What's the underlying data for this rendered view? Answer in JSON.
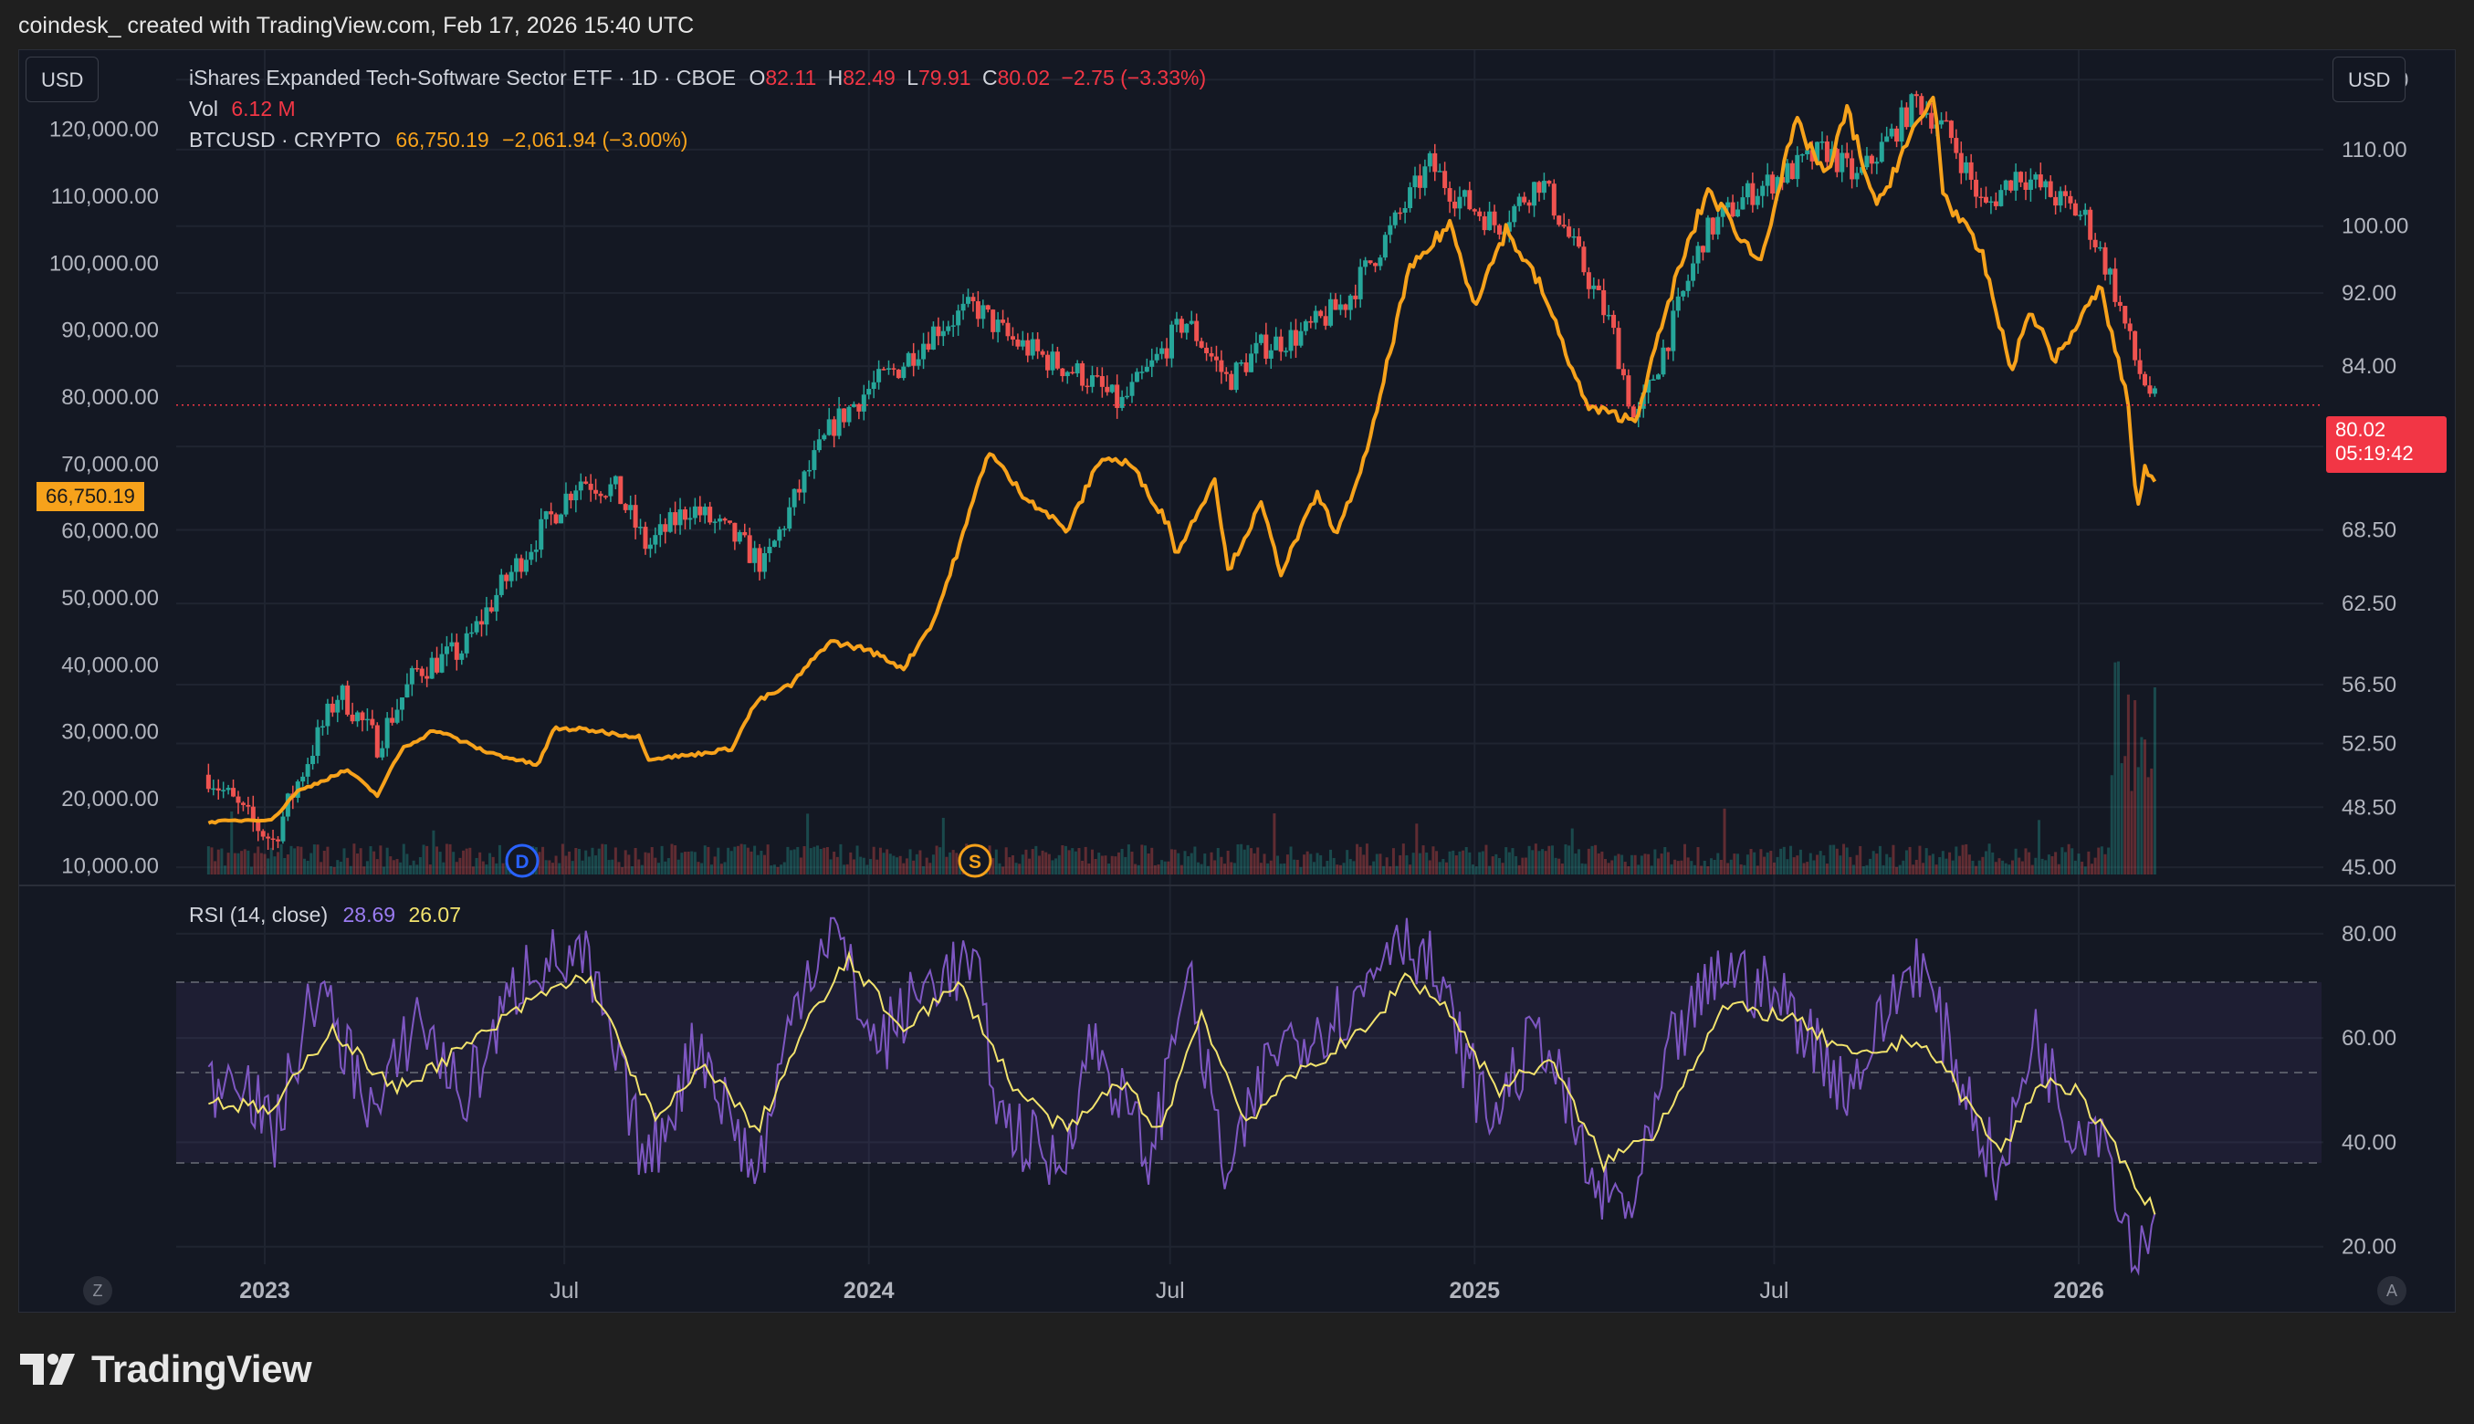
{
  "attribution": "coindesk_ created with TradingView.com, Feb 17, 2026 15:40 UTC",
  "brand": "TradingView",
  "currency_left": "USD",
  "currency_right": "USD",
  "legend": {
    "etf_name": "iShares Expanded Tech-Software Sector ETF · 1D · CBOE",
    "o_label": "O",
    "o_value": "82.11",
    "h_label": "H",
    "h_value": "82.49",
    "l_label": "L",
    "l_value": "79.91",
    "c_label": "C",
    "c_value": "80.02",
    "change": "−2.75 (−3.33%)",
    "vol_label": "Vol",
    "vol_value": "6.12 M",
    "btc_name": "BTCUSD · CRYPTO",
    "btc_value": "66,750.19",
    "btc_change": "−2,061.94 (−3.00%)",
    "rsi_label": "RSI (14, close)",
    "rsi_value": "28.69",
    "rsi_ma_value": "26.07"
  },
  "price_tags": {
    "btc_last": "66,750.19",
    "etf_last": "80.02",
    "countdown": "05:19:42"
  },
  "markers": {
    "dividend": "D",
    "split": "S"
  },
  "corner_buttons": {
    "left": "Z",
    "right": "A"
  },
  "colors": {
    "background": "#141823",
    "candle_up": "#26a69a",
    "candle_down": "#ef5350",
    "btc_line": "#f7a21b",
    "rsi_line": "#7e57c2",
    "rsi_ma_line": "#f2e36d",
    "last_price": "#f23645"
  },
  "chart_data": [
    {
      "type": "line",
      "title": "iShares Expanded Tech-Software Sector ETF · 1D · CBOE vs BTCUSD · CRYPTO",
      "x_tick_labels": [
        "2023",
        "Jul",
        "2024",
        "Jul",
        "2025",
        "Jul",
        "2026"
      ],
      "right_axis": {
        "tick_labels": [
          "120.00",
          "110.00",
          "100.00",
          "92.00",
          "84.00",
          "76.00",
          "68.50",
          "62.50",
          "56.50",
          "52.50",
          "48.50",
          "45.00"
        ],
        "scale": "log",
        "ylim": [
          44.5,
          121
        ]
      },
      "left_axis": {
        "tick_labels": [
          "120,000.00",
          "110,000.00",
          "100,000.00",
          "90,000.00",
          "80,000.00",
          "70,000.00",
          "60,000.00",
          "50,000.00",
          "40,000.00",
          "30,000.00",
          "20,000.00",
          "10,000.00"
        ],
        "ylim": [
          5000,
          125000
        ]
      },
      "series": [
        {
          "name": "iShares Expanded Tech-Software Sector ETF",
          "style": "candlestick",
          "axis": "right",
          "points": [
            [
              "2022-11-28",
              50.5
            ],
            [
              "2022-12-20",
              48.0
            ],
            [
              "2023-01-06",
              46.5
            ],
            [
              "2023-01-25",
              51.0
            ],
            [
              "2023-02-15",
              56.0
            ],
            [
              "2023-03-10",
              52.5
            ],
            [
              "2023-04-03",
              57.5
            ],
            [
              "2023-05-01",
              59.0
            ],
            [
              "2023-05-25",
              64.0
            ],
            [
              "2023-06-20",
              69.0
            ],
            [
              "2023-07-10",
              73.0
            ],
            [
              "2023-08-01",
              72.0
            ],
            [
              "2023-08-20",
              67.0
            ],
            [
              "2023-09-15",
              70.5
            ],
            [
              "2023-10-10",
              68.0
            ],
            [
              "2023-10-30",
              65.5
            ],
            [
              "2023-11-20",
              72.0
            ],
            [
              "2023-12-10",
              78.0
            ],
            [
              "2023-12-31",
              81.5
            ],
            [
              "2024-01-20",
              84.0
            ],
            [
              "2024-02-10",
              88.0
            ],
            [
              "2024-03-05",
              90.5
            ],
            [
              "2024-03-25",
              87.0
            ],
            [
              "2024-04-20",
              84.5
            ],
            [
              "2024-05-10",
              83.0
            ],
            [
              "2024-06-01",
              80.0
            ],
            [
              "2024-06-20",
              84.0
            ],
            [
              "2024-07-10",
              89.0
            ],
            [
              "2024-08-05",
              82.5
            ],
            [
              "2024-08-25",
              86.0
            ],
            [
              "2024-09-20",
              87.5
            ],
            [
              "2024-10-15",
              91.0
            ],
            [
              "2024-11-10",
              99.0
            ],
            [
              "2024-12-05",
              108.0
            ],
            [
              "2024-12-20",
              104.0
            ],
            [
              "2025-01-15",
              100.0
            ],
            [
              "2025-02-10",
              106.0
            ],
            [
              "2025-03-05",
              96.0
            ],
            [
              "2025-03-25",
              88.0
            ],
            [
              "2025-04-08",
              78.0
            ],
            [
              "2025-04-30",
              88.0
            ],
            [
              "2025-05-20",
              99.0
            ],
            [
              "2025-06-15",
              104.0
            ],
            [
              "2025-07-10",
              107.0
            ],
            [
              "2025-08-01",
              110.0
            ],
            [
              "2025-08-20",
              106.0
            ],
            [
              "2025-09-10",
              112.0
            ],
            [
              "2025-09-25",
              117.0
            ],
            [
              "2025-10-15",
              112.0
            ],
            [
              "2025-11-05",
              102.0
            ],
            [
              "2025-11-25",
              107.0
            ],
            [
              "2025-12-15",
              104.0
            ],
            [
              "2026-01-05",
              101.0
            ],
            [
              "2026-01-20",
              94.0
            ],
            [
              "2026-02-05",
              84.0
            ],
            [
              "2026-02-17",
              80.02
            ]
          ]
        },
        {
          "name": "BTCUSD · CRYPTO",
          "style": "line",
          "axis": "left",
          "points": [
            [
              "2022-11-28",
              16500
            ],
            [
              "2022-12-20",
              16800
            ],
            [
              "2023-01-06",
              16900
            ],
            [
              "2023-01-20",
              21000
            ],
            [
              "2023-02-20",
              24300
            ],
            [
              "2023-03-10",
              20500
            ],
            [
              "2023-03-25",
              27500
            ],
            [
              "2023-04-14",
              30300
            ],
            [
              "2023-05-15",
              27000
            ],
            [
              "2023-06-15",
              25000
            ],
            [
              "2023-06-25",
              30500
            ],
            [
              "2023-07-15",
              30300
            ],
            [
              "2023-08-16",
              29200
            ],
            [
              "2023-08-20",
              26000
            ],
            [
              "2023-09-15",
              26500
            ],
            [
              "2023-10-10",
              27500
            ],
            [
              "2023-10-25",
              34500
            ],
            [
              "2023-11-15",
              37000
            ],
            [
              "2023-12-08",
              43500
            ],
            [
              "2023-12-31",
              42300
            ],
            [
              "2024-01-22",
              39500
            ],
            [
              "2024-02-10",
              47000
            ],
            [
              "2024-02-29",
              61000
            ],
            [
              "2024-03-13",
              72000
            ],
            [
              "2024-04-01",
              66000
            ],
            [
              "2024-04-30",
              60000
            ],
            [
              "2024-05-20",
              71000
            ],
            [
              "2024-06-07",
              70000
            ],
            [
              "2024-06-30",
              61000
            ],
            [
              "2024-07-05",
              56500
            ],
            [
              "2024-07-28",
              68000
            ],
            [
              "2024-08-05",
              54000
            ],
            [
              "2024-08-25",
              64000
            ],
            [
              "2024-09-06",
              53800
            ],
            [
              "2024-09-28",
              65500
            ],
            [
              "2024-10-10",
              59500
            ],
            [
              "2024-10-29",
              72500
            ],
            [
              "2024-11-12",
              88000
            ],
            [
              "2024-11-22",
              98500
            ],
            [
              "2024-12-17",
              106000
            ],
            [
              "2025-01-01",
              94000
            ],
            [
              "2025-01-20",
              105000
            ],
            [
              "2025-02-10",
              96500
            ],
            [
              "2025-03-10",
              78500
            ],
            [
              "2025-04-08",
              76500
            ],
            [
              "2025-05-01",
              96500
            ],
            [
              "2025-05-22",
              111000
            ],
            [
              "2025-06-22",
              100000
            ],
            [
              "2025-07-14",
              121000
            ],
            [
              "2025-08-02",
              113000
            ],
            [
              "2025-08-14",
              123000
            ],
            [
              "2025-09-01",
              108000
            ],
            [
              "2025-09-15",
              116000
            ],
            [
              "2025-10-06",
              125000
            ],
            [
              "2025-10-11",
              110500
            ],
            [
              "2025-11-04",
              101000
            ],
            [
              "2025-11-21",
              84000
            ],
            [
              "2025-12-03",
              93000
            ],
            [
              "2025-12-18",
              85500
            ],
            [
              "2026-01-14",
              96500
            ],
            [
              "2026-01-31",
              79000
            ],
            [
              "2026-02-05",
              63000
            ],
            [
              "2026-02-10",
              69500
            ],
            [
              "2026-02-17",
              66750.19
            ]
          ]
        }
      ]
    },
    {
      "type": "bar",
      "title": "Vol",
      "x_tick_labels": [
        "2023",
        "Jul",
        "2024",
        "Jul",
        "2025",
        "Jul",
        "2026"
      ],
      "note": "ETF daily volume, small most of the period, spiking near Feb 2026",
      "last_value": "6.12 M"
    },
    {
      "type": "line",
      "title": "RSI (14, close)",
      "x_tick_labels": [
        "2023",
        "Jul",
        "2024",
        "Jul",
        "2025",
        "Jul",
        "2026"
      ],
      "y_tick_labels": [
        "80.00",
        "60.00",
        "40.00",
        "20.00"
      ],
      "ylim": [
        14,
        84
      ],
      "bands": {
        "upper": 70,
        "middle": 50,
        "lower": 30
      },
      "series": [
        {
          "name": "RSI",
          "points": [
            [
              "2022-11-28",
              50
            ],
            [
              "2022-12-15",
              56
            ],
            [
              "2023-01-06",
              40
            ],
            [
              "2023-02-01",
              70
            ],
            [
              "2023-03-10",
              45
            ],
            [
              "2023-04-03",
              65
            ],
            [
              "2023-05-01",
              48
            ],
            [
              "2023-06-10",
              75
            ],
            [
              "2023-07-15",
              74
            ],
            [
              "2023-08-20",
              35
            ],
            [
              "2023-09-20",
              60
            ],
            [
              "2023-10-25",
              33
            ],
            [
              "2023-11-20",
              70
            ],
            [
              "2023-12-10",
              82
            ],
            [
              "2024-01-05",
              58
            ],
            [
              "2024-02-10",
              72
            ],
            [
              "2024-03-05",
              74
            ],
            [
              "2024-03-20",
              45
            ],
            [
              "2024-04-25",
              35
            ],
            [
              "2024-05-15",
              60
            ],
            [
              "2024-06-20",
              36
            ],
            [
              "2024-07-10",
              74
            ],
            [
              "2024-08-05",
              32
            ],
            [
              "2024-09-01",
              58
            ],
            [
              "2024-10-20",
              66
            ],
            [
              "2024-11-15",
              82
            ],
            [
              "2024-12-05",
              74
            ],
            [
              "2025-01-10",
              44
            ],
            [
              "2025-02-10",
              62
            ],
            [
              "2025-03-15",
              30
            ],
            [
              "2025-04-08",
              28
            ],
            [
              "2025-04-30",
              58
            ],
            [
              "2025-06-01",
              74
            ],
            [
              "2025-07-10",
              66
            ],
            [
              "2025-08-15",
              50
            ],
            [
              "2025-09-25",
              76
            ],
            [
              "2025-10-15",
              58
            ],
            [
              "2025-11-15",
              32
            ],
            [
              "2025-12-05",
              62
            ],
            [
              "2025-12-25",
              44
            ],
            [
              "2026-01-15",
              44
            ],
            [
              "2026-02-05",
              16
            ],
            [
              "2026-02-17",
              28.69
            ]
          ]
        },
        {
          "name": "RSI-based MA",
          "points": [
            [
              "2022-11-28",
              48
            ],
            [
              "2023-01-06",
              46
            ],
            [
              "2023-02-10",
              62
            ],
            [
              "2023-03-20",
              50
            ],
            [
              "2023-05-01",
              58
            ],
            [
              "2023-06-15",
              68
            ],
            [
              "2023-07-15",
              72
            ],
            [
              "2023-08-25",
              44
            ],
            [
              "2023-09-25",
              55
            ],
            [
              "2023-10-25",
              42
            ],
            [
              "2023-11-25",
              63
            ],
            [
              "2023-12-20",
              75
            ],
            [
              "2024-01-20",
              62
            ],
            [
              "2024-02-25",
              70
            ],
            [
              "2024-03-30",
              50
            ],
            [
              "2024-04-30",
              42
            ],
            [
              "2024-06-01",
              52
            ],
            [
              "2024-06-25",
              42
            ],
            [
              "2024-07-20",
              65
            ],
            [
              "2024-08-15",
              44
            ],
            [
              "2024-09-15",
              53
            ],
            [
              "2024-10-30",
              62
            ],
            [
              "2024-11-20",
              72
            ],
            [
              "2024-12-15",
              66
            ],
            [
              "2025-01-15",
              50
            ],
            [
              "2025-02-15",
              56
            ],
            [
              "2025-03-20",
              36
            ],
            [
              "2025-04-20",
              42
            ],
            [
              "2025-06-01",
              66
            ],
            [
              "2025-07-10",
              64
            ],
            [
              "2025-08-20",
              56
            ],
            [
              "2025-09-25",
              60
            ],
            [
              "2025-10-10",
              55
            ],
            [
              "2025-11-15",
              38
            ],
            [
              "2025-12-10",
              52
            ],
            [
              "2025-12-30",
              50
            ],
            [
              "2026-01-20",
              40
            ],
            [
              "2026-02-17",
              26.07
            ]
          ]
        }
      ]
    }
  ]
}
